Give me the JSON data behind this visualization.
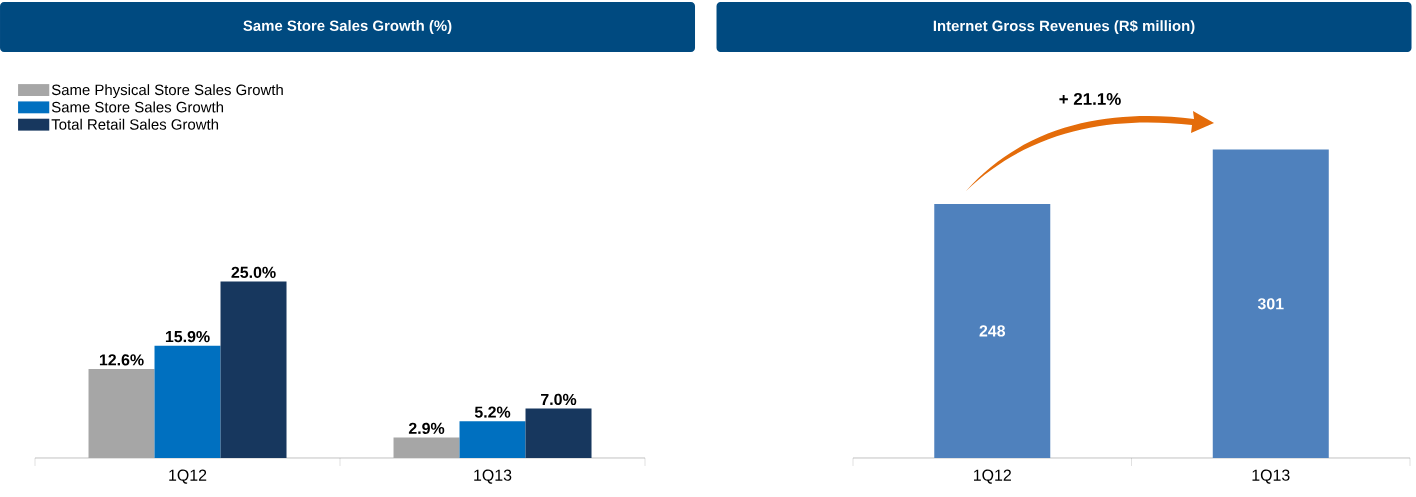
{
  "chart_data": [
    {
      "type": "bar",
      "title": "Same Store Sales Growth (%)",
      "categories": [
        "1Q12",
        "1Q13"
      ],
      "legend": "top left",
      "series": [
        {
          "name": "Same Physical Store Sales Growth",
          "color": "#a6a6a6",
          "values": [
            12.6,
            2.9
          ],
          "value_labels": [
            "12.6%",
            "2.9%"
          ]
        },
        {
          "name": "Same Store Sales Growth",
          "color": "#0070c0",
          "values": [
            15.9,
            5.2
          ],
          "value_labels": [
            "15.9%",
            "5.2%"
          ]
        },
        {
          "name": "Total Retail Sales Growth",
          "color": "#17375e",
          "values": [
            25.0,
            7.0
          ],
          "value_labels": [
            "25.0%",
            "7.0%"
          ]
        }
      ]
    },
    {
      "type": "bar",
      "title": "Internet Gross Revenues (R$ million)",
      "categories": [
        "1Q12",
        "1Q13"
      ],
      "values": [
        248,
        301
      ],
      "color": "#4f81bd",
      "data_labels": true,
      "legend": false,
      "annotations": [
        "+ 21.1%"
      ]
    }
  ]
}
